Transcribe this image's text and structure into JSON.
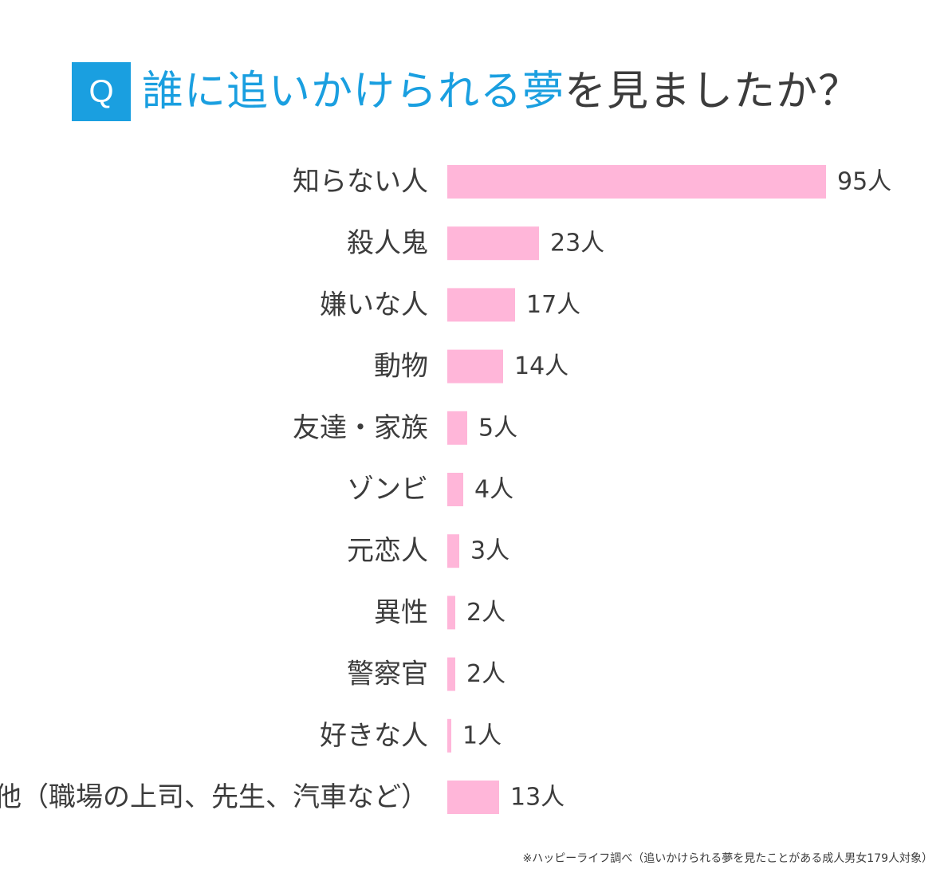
{
  "header": {
    "badge": "Q",
    "title_accent": "誰に追いかけられる夢",
    "title_rest": "を見ましたか？"
  },
  "colors": {
    "accent": "#1a9fe0",
    "bar": "#ffb6d9",
    "text": "#3c3c3c"
  },
  "chart_data": {
    "type": "bar",
    "orientation": "horizontal",
    "categories": [
      "知らない人",
      "殺人鬼",
      "嫌いな人",
      "動物",
      "友達・家族",
      "ゾンビ",
      "元恋人",
      "異性",
      "警察官",
      "好きな人",
      "その他（職場の上司、先生、汽車など）"
    ],
    "values": [
      95,
      23,
      17,
      14,
      5,
      4,
      3,
      2,
      2,
      1,
      13
    ],
    "value_labels": [
      "95人",
      "23人",
      "17人",
      "14人",
      "5人",
      "4人",
      "3人",
      "2人",
      "2人",
      "1人",
      "13人"
    ],
    "xlim": [
      0,
      95
    ],
    "grid": false,
    "legend": "none"
  },
  "footnote": "※ハッピーライフ調べ（追いかけられる夢を見たことがある成人男女179人対象）"
}
